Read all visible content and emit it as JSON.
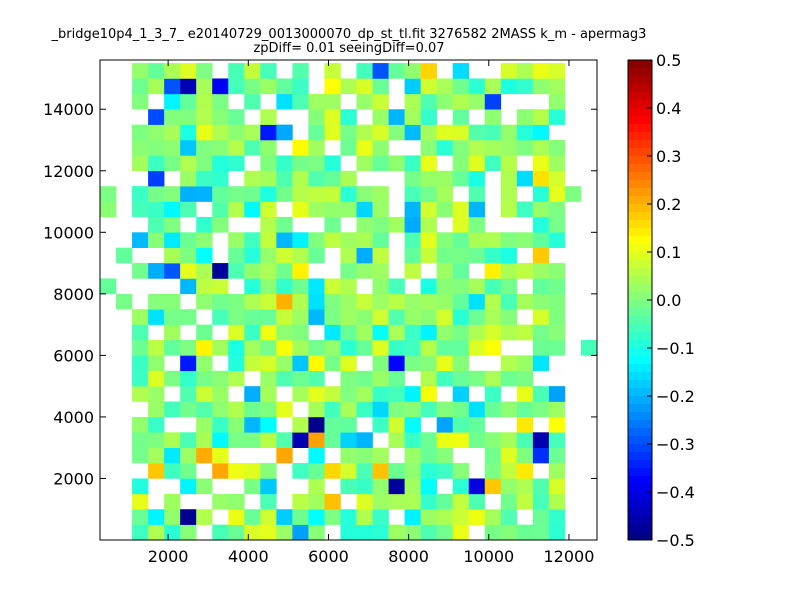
{
  "chart_data": {
    "type": "heatmap",
    "title_line1": "_bridge10p4_1_3_7_ e20140729_0013000070_dp_st_tl.fit 3276582 2MASS k_m - apermag3",
    "title_line2": "zpDiff= 0.01 seeingDiff=0.07",
    "xlabel": "",
    "ylabel": "",
    "xlim": [
      300,
      12700
    ],
    "ylim": [
      0,
      15600
    ],
    "xticks": [
      2000,
      4000,
      6000,
      8000,
      10000,
      12000
    ],
    "yticks": [
      2000,
      4000,
      6000,
      8000,
      10000,
      12000,
      14000
    ],
    "grid": false,
    "bin_size_x": 400,
    "bin_size_y": 500,
    "colormap": "jet",
    "colorbar": {
      "vmin": -0.5,
      "vmax": 0.5,
      "ticks": [
        "0.5",
        "0.4",
        "0.3",
        "0.2",
        "0.1",
        "0.0",
        "−0.1",
        "−0.2",
        "−0.3",
        "−0.4",
        "−0.5"
      ]
    }
  }
}
